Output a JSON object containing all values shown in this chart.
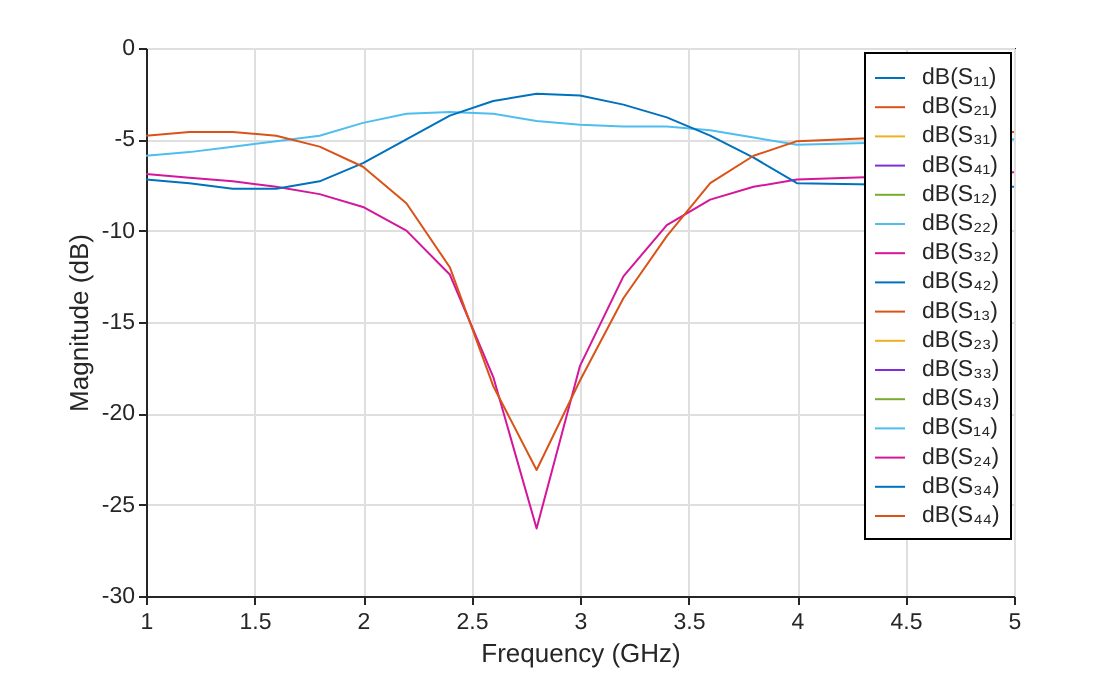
{
  "chart_data": {
    "type": "line",
    "xlabel": "Frequency (GHz)",
    "ylabel": "Magnitude (dB)",
    "x": [
      1,
      1.2,
      1.4,
      1.6,
      1.8,
      2,
      2.2,
      2.4,
      2.6,
      2.8,
      3,
      3.2,
      3.4,
      3.6,
      3.8,
      4,
      5
    ],
    "xlim": [
      1,
      5
    ],
    "xticks": [
      1,
      1.5,
      2,
      2.5,
      3,
      3.5,
      4,
      4.5,
      5
    ],
    "ylim": [
      -30,
      0
    ],
    "yticks": [
      -30,
      -25,
      -20,
      -15,
      -10,
      -5,
      0
    ],
    "grid": true,
    "legend": "top right",
    "marker": "none",
    "line_style": "solid",
    "series": [
      {
        "name": "dB(S₁₁)",
        "color": "#0072bd",
        "values": [
          null,
          null,
          null,
          null,
          null,
          null,
          null,
          null,
          null,
          null,
          null,
          null,
          null,
          null,
          null,
          null,
          null
        ]
      },
      {
        "name": "dB(S₂₁)",
        "color": "#d95319",
        "values": [
          null,
          null,
          null,
          null,
          null,
          null,
          null,
          null,
          null,
          null,
          null,
          null,
          null,
          null,
          null,
          null,
          null
        ]
      },
      {
        "name": "dB(S₃₁)",
        "color": "#edb120",
        "values": [
          null,
          null,
          null,
          null,
          null,
          null,
          null,
          null,
          null,
          null,
          null,
          null,
          null,
          null,
          null,
          null,
          null
        ]
      },
      {
        "name": "dB(S₄₁)",
        "color": "#7e2fd8",
        "values": [
          null,
          null,
          null,
          null,
          null,
          null,
          null,
          null,
          null,
          null,
          null,
          null,
          null,
          null,
          null,
          null,
          null
        ]
      },
      {
        "name": "dB(S₁₂)",
        "color": "#77ac30",
        "values": [
          null,
          null,
          null,
          null,
          null,
          null,
          null,
          null,
          null,
          null,
          null,
          null,
          null,
          null,
          null,
          null,
          null
        ]
      },
      {
        "name": "dB(S₂₂)",
        "color": "#4dbeee",
        "values": [
          null,
          null,
          null,
          null,
          null,
          null,
          null,
          null,
          null,
          null,
          null,
          null,
          null,
          null,
          null,
          null,
          null
        ]
      },
      {
        "name": "dB(S₃₂)",
        "color": "#d4169a",
        "values": [
          null,
          null,
          null,
          null,
          null,
          null,
          null,
          null,
          null,
          null,
          null,
          null,
          null,
          null,
          null,
          null,
          null
        ]
      },
      {
        "name": "dB(S₄₂)",
        "color": "#0072bd",
        "values": [
          null,
          null,
          null,
          null,
          null,
          null,
          null,
          null,
          null,
          null,
          null,
          null,
          null,
          null,
          null,
          null,
          null
        ]
      },
      {
        "name": "dB(S₁₃)",
        "color": "#d95319",
        "values": [
          null,
          null,
          null,
          null,
          null,
          null,
          null,
          null,
          null,
          null,
          null,
          null,
          null,
          null,
          null,
          null,
          null
        ]
      },
      {
        "name": "dB(S₂₃)",
        "color": "#edb120",
        "values": [
          null,
          null,
          null,
          null,
          null,
          null,
          null,
          null,
          null,
          null,
          null,
          null,
          null,
          null,
          null,
          null,
          null
        ]
      },
      {
        "name": "dB(S₃₃)",
        "color": "#7e2fd8",
        "values": [
          null,
          null,
          null,
          null,
          null,
          null,
          null,
          null,
          null,
          null,
          null,
          null,
          null,
          null,
          null,
          null,
          null
        ]
      },
      {
        "name": "dB(S₄₃)",
        "color": "#77ac30",
        "values": [
          null,
          null,
          null,
          null,
          null,
          null,
          null,
          null,
          null,
          null,
          null,
          null,
          null,
          null,
          null,
          null,
          null
        ]
      },
      {
        "name": "dB(S₁₄)",
        "color": "#4dbeee",
        "values": [
          -5.9,
          -5.7,
          -5.4,
          -5.1,
          -4.8,
          -4.1,
          -3.6,
          -3.5,
          -3.6,
          -4.0,
          -4.2,
          -4.3,
          -4.3,
          -4.5,
          -4.9,
          -5.3,
          -5.0
        ]
      },
      {
        "name": "dB(S₂₄)",
        "color": "#d4169a",
        "values": [
          -6.9,
          -7.1,
          -7.3,
          -7.6,
          -8.0,
          -8.7,
          -10.0,
          -12.4,
          -18.0,
          -26.3,
          -17.4,
          -12.5,
          -9.7,
          -8.3,
          -7.6,
          -7.2,
          -6.8
        ]
      },
      {
        "name": "dB(S₃₄)",
        "color": "#0072bd",
        "values": [
          -7.2,
          -7.4,
          -7.7,
          -7.7,
          -7.3,
          -6.3,
          -5.0,
          -3.7,
          -2.9,
          -2.5,
          -2.6,
          -3.1,
          -3.8,
          -4.8,
          -6.0,
          -7.4,
          -7.6
        ]
      },
      {
        "name": "dB(S₄₄)",
        "color": "#d95319",
        "values": [
          -4.8,
          -4.6,
          -4.6,
          -4.8,
          -5.4,
          -6.5,
          -8.5,
          -12.0,
          -18.5,
          -23.1,
          -18.2,
          -13.7,
          -10.3,
          -7.4,
          -5.9,
          -5.1,
          -4.6
        ]
      }
    ]
  }
}
